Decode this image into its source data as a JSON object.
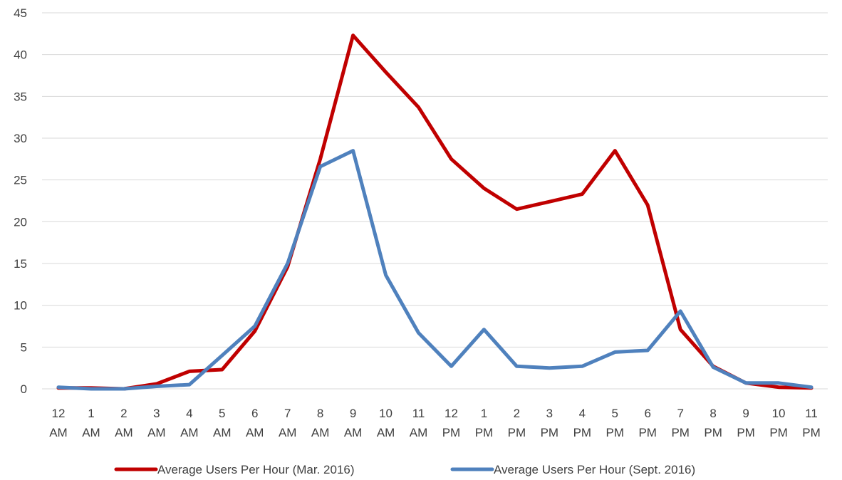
{
  "chart_data": {
    "type": "line",
    "title": "",
    "xlabel": "",
    "ylabel": "",
    "ylim": [
      0,
      45
    ],
    "yticks": [
      0,
      5,
      10,
      15,
      20,
      25,
      30,
      35,
      40,
      45
    ],
    "grid": true,
    "legend_position": "bottom",
    "categories": [
      [
        "12",
        "AM"
      ],
      [
        "1",
        "AM"
      ],
      [
        "2",
        "AM"
      ],
      [
        "3",
        "AM"
      ],
      [
        "4",
        "AM"
      ],
      [
        "5",
        "AM"
      ],
      [
        "6",
        "AM"
      ],
      [
        "7",
        "AM"
      ],
      [
        "8",
        "AM"
      ],
      [
        "9",
        "AM"
      ],
      [
        "10",
        "AM"
      ],
      [
        "11",
        "AM"
      ],
      [
        "12",
        "PM"
      ],
      [
        "1",
        "PM"
      ],
      [
        "2",
        "PM"
      ],
      [
        "3",
        "PM"
      ],
      [
        "4",
        "PM"
      ],
      [
        "5",
        "PM"
      ],
      [
        "6",
        "PM"
      ],
      [
        "7",
        "PM"
      ],
      [
        "8",
        "PM"
      ],
      [
        "9",
        "PM"
      ],
      [
        "10",
        "PM"
      ],
      [
        "11",
        "PM"
      ]
    ],
    "series": [
      {
        "name": "Average Users Per Hour (Mar. 2016)",
        "color": "#c00000",
        "values": [
          0.1,
          0.1,
          0.0,
          0.6,
          2.1,
          2.3,
          6.9,
          14.6,
          27.5,
          42.3,
          37.9,
          33.7,
          27.5,
          24.0,
          21.5,
          22.4,
          23.3,
          28.5,
          22.0,
          7.1,
          2.7,
          0.7,
          0.2,
          0.1
        ]
      },
      {
        "name": "Average Users Per Hour (Sept. 2016)",
        "color": "#4f81bd",
        "values": [
          0.2,
          0.0,
          0.0,
          0.3,
          0.5,
          4.0,
          7.5,
          15.0,
          26.6,
          28.5,
          13.6,
          6.7,
          2.7,
          7.1,
          2.7,
          2.5,
          2.7,
          4.4,
          4.6,
          9.3,
          2.6,
          0.7,
          0.7,
          0.2
        ]
      }
    ]
  }
}
